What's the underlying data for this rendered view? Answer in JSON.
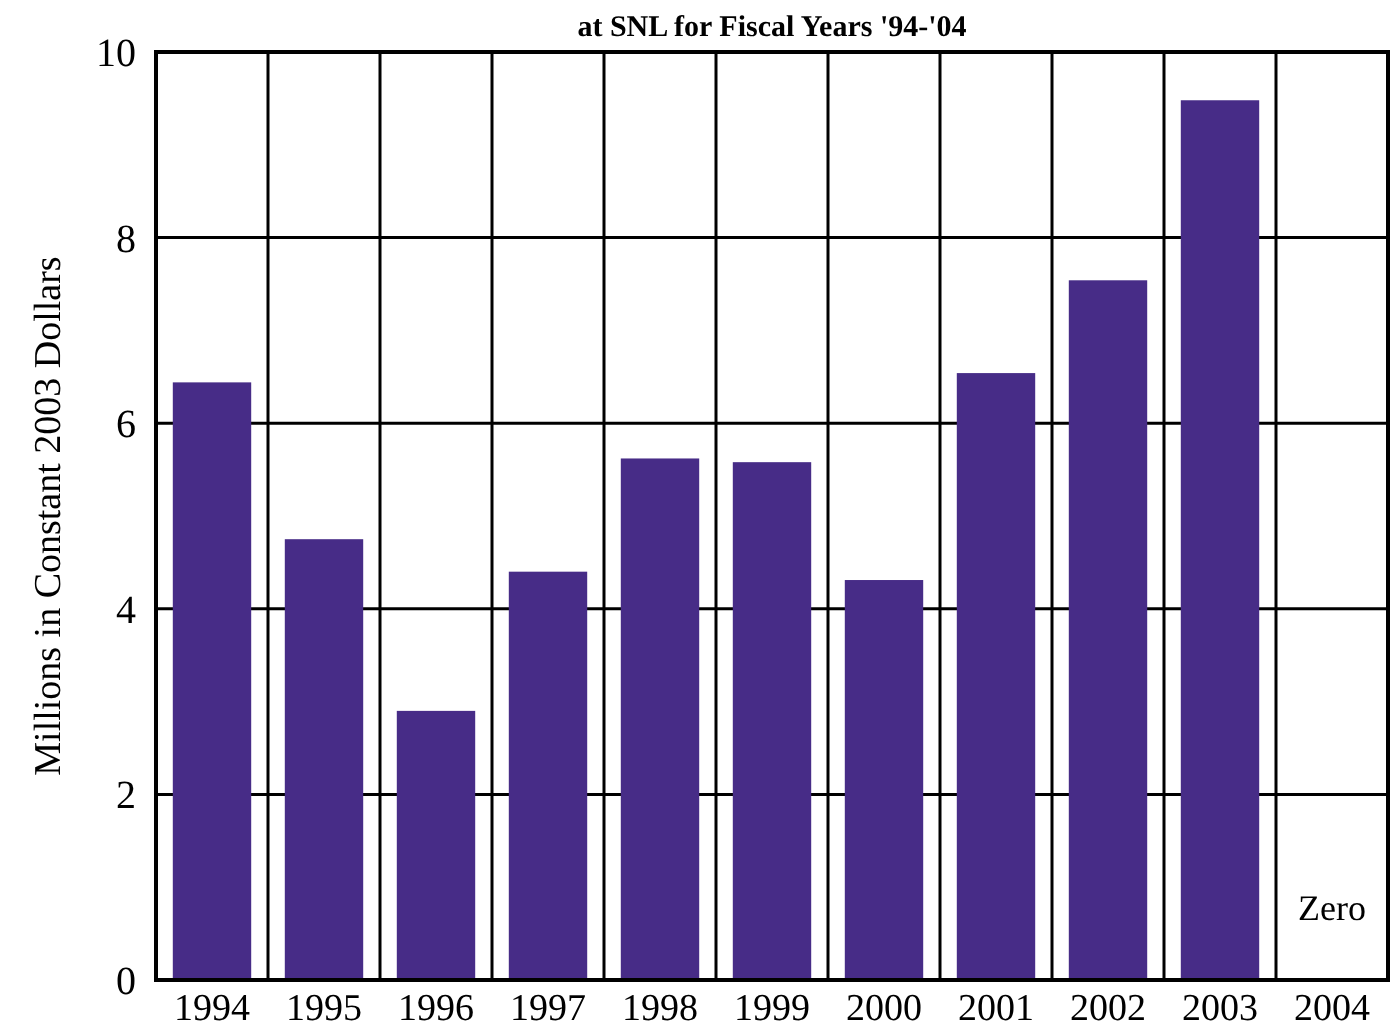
{
  "chart_data": {
    "type": "bar",
    "title": "at SNL for Fiscal Years '94-'04",
    "ylabel": "Millions in Constant 2003 Dollars",
    "categories": [
      "1994",
      "1995",
      "1996",
      "1997",
      "1998",
      "1999",
      "2000",
      "2001",
      "2002",
      "2003",
      "2004"
    ],
    "values": [
      6.44,
      4.75,
      2.9,
      4.4,
      5.62,
      5.58,
      4.31,
      6.54,
      7.54,
      9.48,
      0
    ],
    "color": "#472c87",
    "ylim": [
      0,
      10
    ],
    "yticks": [
      0,
      2,
      4,
      6,
      8,
      10
    ],
    "grid": true,
    "annotations": [
      {
        "text": "Zero",
        "x": "2004",
        "y": 0
      }
    ]
  }
}
